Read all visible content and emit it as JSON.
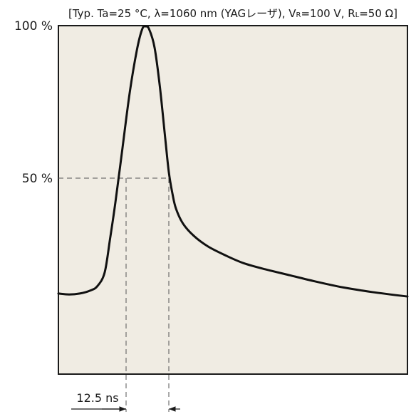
{
  "chart_data": {
    "type": "line",
    "conditions": {
      "prefix": "[Typ. Ta=25 °C, λ=1060 nm (YAGレーザ), V",
      "vr_sub": "R",
      "mid": "=100 V, R",
      "rl_sub": "L",
      "suffix": "=50 Ω]"
    },
    "y_ticks": [
      {
        "label": "100 %",
        "value": 100
      },
      {
        "label": "50 %",
        "value": 50
      }
    ],
    "ylim": [
      0,
      100
    ],
    "xlim": [
      0,
      98
    ],
    "x_units": "ns",
    "grid": false,
    "series": [
      {
        "points": [
          [
            0,
            12
          ],
          [
            3,
            11.7
          ],
          [
            6,
            12
          ],
          [
            9,
            13
          ],
          [
            11,
            14.5
          ],
          [
            13,
            19
          ],
          [
            14.5,
            30
          ],
          [
            16,
            42
          ],
          [
            18,
            60
          ],
          [
            20,
            78
          ],
          [
            22,
            92
          ],
          [
            23.5,
            99
          ],
          [
            24.5,
            100
          ],
          [
            25.5,
            99
          ],
          [
            27,
            93
          ],
          [
            28.5,
            80
          ],
          [
            30,
            63
          ],
          [
            31,
            52
          ],
          [
            32,
            45
          ],
          [
            33,
            40
          ],
          [
            35,
            35
          ],
          [
            38,
            31
          ],
          [
            42,
            27.5
          ],
          [
            47,
            24.5
          ],
          [
            52,
            22
          ],
          [
            58,
            20
          ],
          [
            65,
            18
          ],
          [
            72,
            16
          ],
          [
            80,
            14
          ],
          [
            88,
            12.5
          ],
          [
            98,
            11
          ]
        ],
        "color": "#111111"
      }
    ],
    "annotations": [
      {
        "text": "12.5 ns",
        "x_start": 19,
        "x_end": 31,
        "level": 50
      }
    ],
    "plot_background": "#f0ece3",
    "reference_line_color": "#555555"
  }
}
